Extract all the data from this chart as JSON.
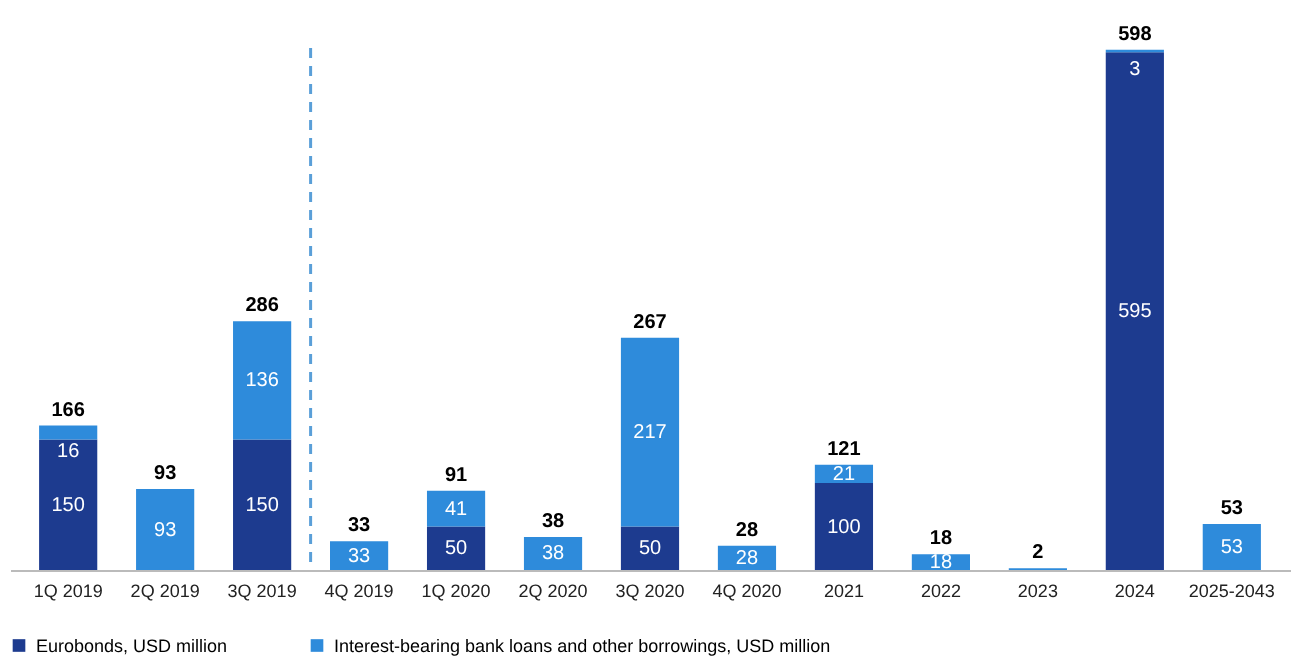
{
  "chart_data": {
    "type": "bar",
    "stacked": true,
    "categories": [
      "1Q 2019",
      "2Q 2019",
      "3Q 2019",
      "4Q 2019",
      "1Q 2020",
      "2Q 2020",
      "3Q 2020",
      "4Q 2020",
      "2021",
      "2022",
      "2023",
      "2024",
      "2025-2043"
    ],
    "series": [
      {
        "name": "Eurobonds, USD million",
        "color": "#1d3b8f",
        "values": [
          150,
          null,
          150,
          null,
          50,
          null,
          50,
          null,
          100,
          null,
          null,
          595,
          null
        ],
        "value_labels": [
          "150",
          null,
          "150",
          null,
          "50",
          null,
          "50",
          null,
          "100",
          null,
          null,
          "595",
          null
        ]
      },
      {
        "name": "Interest-bearing bank loans and other borrowings, USD million",
        "color": "#2e8bdb",
        "values": [
          16,
          93,
          136,
          33,
          41,
          38,
          217,
          28,
          21,
          18,
          2,
          3,
          53
        ],
        "value_labels": [
          "16",
          "93",
          "136",
          "33",
          "41",
          "38",
          "217",
          "28",
          "21",
          "18",
          null,
          "3",
          "53"
        ]
      }
    ],
    "totals": [
      "166",
      "93",
      "286",
      "33",
      "91",
      "38",
      "267",
      "28",
      "121",
      "18",
      "2",
      "598",
      "53"
    ],
    "ref_lines": [
      {
        "axis": "x",
        "value": "3Q 2019",
        "color": "#5a9fd8",
        "line_style": "dashed"
      }
    ],
    "grid": false,
    "legend": "bottom",
    "tick_labels": "x"
  }
}
